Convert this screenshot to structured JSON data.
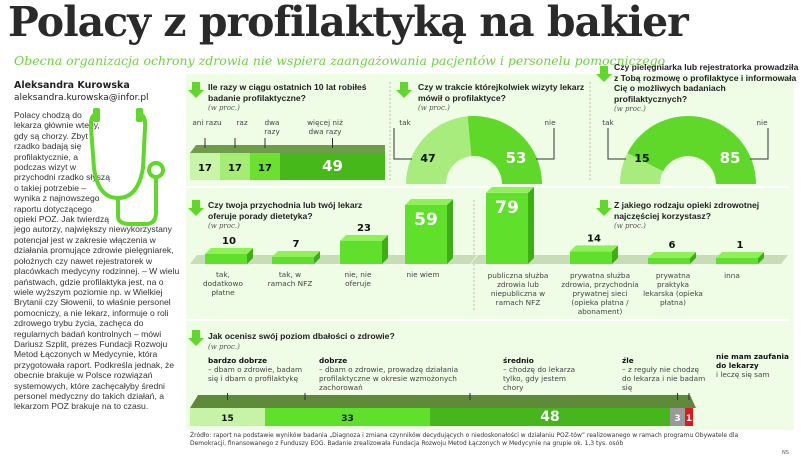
{
  "title": "Polacy z profilaktyką na bakier",
  "subtitle": "Obecna organizacja ochrony zdrowia nie wspiera zaangażowania pacjentów i personelu pomocniczego",
  "author": "Aleksandra Kurowska",
  "email": "aleksandra.kurowska@infor.pl",
  "lead": "Polacy chodzą do lekarza głównie wtedy, gdy są chorzy. Zbyt rzadko badają się profilaktycznie, a podczas wizyt w przychodni rzadko słyszą o takiej potrzebie",
  "body": "– wynika z najnowszego raportu dotyczącego opieki POZ. Jak twierdzą jego autorzy, największy niewykorzystany potencjał jest w zakresie włączenia w działania promujące zdrowie pielęgniarek, położnych czy nawet rejestratorek w placówkach medycyny rodzinnej. – W wielu państwach, gdzie profilaktyka jest, na o wiele wyższym poziomie np. w Wielkiej Brytanii czy Słowenii, to właśnie personel pomocniczy, a nie lekarz, informuje o roli zdrowego trybu życia, zachęca do regularnych badań kontrolnych – mówi Dariusz Szplit, prezes Fundacji Rozwoju Metod Łączonych w Medycynie, która przygotowała raport. Podkreśla jednak, że obecnie brakuje w Polsce rozwiązań systemowych, które zachęcałyby średni personel medyczny do takich działań, a lekarzom POZ brakuje na to czasu.",
  "unit": "(w proc.)",
  "colors": {
    "accent": "#5fd82a",
    "dark": "#3aa516",
    "light": "#c6f3a6",
    "panel": "#effce6",
    "grey": "#9a9a9a",
    "red": "#e0181b"
  },
  "chart_data": [
    {
      "type": "bar",
      "stacked": true,
      "title": "Ile razy w ciągu ostatnich 10 lat robiłeś badanie profilaktyczne?",
      "categories": [
        "ani razu",
        "raz",
        "dwa razy",
        "więcej niż dwa razy"
      ],
      "values": [
        17,
        17,
        17,
        49
      ]
    },
    {
      "type": "pie",
      "half": true,
      "title": "Czy w trakcie którejkolwiek wizyty lekarz mówił o profilaktyce?",
      "categories": [
        "tak",
        "nie"
      ],
      "values": [
        47,
        53
      ]
    },
    {
      "type": "pie",
      "half": true,
      "title": "Czy pielęgniarka lub rejestratorka prowadziła z Tobą rozmowę o profilaktyce i informowała Cię o możliwych badaniach profilaktycznych?",
      "categories": [
        "tak",
        "nie"
      ],
      "values": [
        15,
        85
      ]
    },
    {
      "type": "bar",
      "title": "Czy twoja przychodnia lub twój lekarz oferuje porady dietetyka?",
      "categories": [
        "tak, dodatkowo płatne",
        "tak, w ramach NFZ",
        "nie, nie oferuje",
        "nie wiem"
      ],
      "values": [
        10,
        7,
        23,
        59
      ]
    },
    {
      "type": "bar",
      "title": "Z jakiego rodzaju opieki zdrowotnej najczęściej korzystasz?",
      "categories": [
        "publiczna służba zdrowia lub niepubliczna w ramach NFZ",
        "prywatna służba zdrowia, przychodnia prywatnej sieci (opieka płatna / abonament)",
        "prywatna praktyka lekarska (opieka płatna)",
        "inna"
      ],
      "values": [
        79,
        14,
        6,
        1
      ]
    },
    {
      "type": "bar",
      "stacked": true,
      "title": "Jak ocenisz swój poziom dbałości o zdrowie?",
      "categories": [
        "bardzo dobrze",
        "dobrze",
        "średnio",
        "źle",
        "nie mam zaufania do lekarzy"
      ],
      "descriptions": [
        "– dbam o zdrowie, badam się i dbam o profilaktykę",
        "– dbam o zdrowie, prowadzę działania profilaktyczne w okresie wzmożonych zachorowań",
        "– chodzę do lekarza tylko, gdy jestem chory",
        "– z reguły nie chodzę do lekarza i nie badam się",
        "i leczę się sam"
      ],
      "values": [
        15,
        33,
        48,
        3,
        1
      ]
    }
  ],
  "source": "Źródło: raport na podstawie wyników badania „Diagnoza i zmiana czynników decydujących o niedoskonałości w działaniu POZ-tów” realizowanego w ramach programu Obywatele dla Demokracji, finansowanego z Funduszy EOG. Badanie zrealizowała Fundacja Rozwoju Metod Łączonych w Medycynie na grupie ok. 1,3 tys. osób",
  "credit": "NS"
}
